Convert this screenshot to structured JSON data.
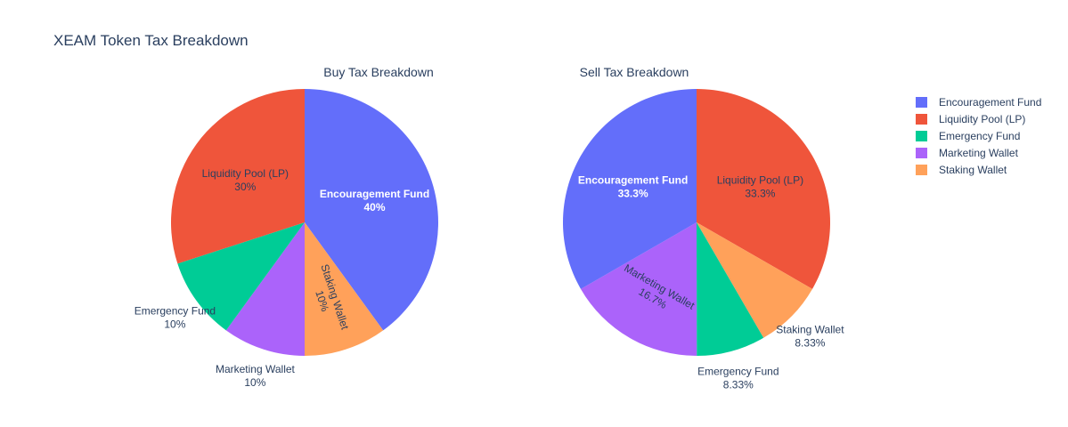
{
  "chart_data": {
    "title": "XEAM Token Tax Breakdown",
    "legend": {
      "placement": "top-right",
      "entries": [
        {
          "name": "Encouragement Fund",
          "color": "#636efa"
        },
        {
          "name": "Liquidity Pool (LP)",
          "color": "#ef553b"
        },
        {
          "name": "Emergency Fund",
          "color": "#00cc96"
        },
        {
          "name": "Marketing Wallet",
          "color": "#ab63fa"
        },
        {
          "name": "Staking Wallet",
          "color": "#ffa15a"
        }
      ]
    },
    "charts": [
      {
        "type": "pie",
        "title": "Buy Tax Breakdown",
        "slices": [
          {
            "label": "Encouragement Fund",
            "value": 40,
            "percent_label": "40%",
            "color": "#636efa"
          },
          {
            "label": "Staking Wallet",
            "value": 10,
            "percent_label": "10%",
            "color": "#ffa15a"
          },
          {
            "label": "Marketing Wallet",
            "value": 10,
            "percent_label": "10%",
            "color": "#ab63fa"
          },
          {
            "label": "Emergency Fund",
            "value": 10,
            "percent_label": "10%",
            "color": "#00cc96"
          },
          {
            "label": "Liquidity Pool (LP)",
            "value": 30,
            "percent_label": "30%",
            "color": "#ef553b"
          }
        ]
      },
      {
        "type": "pie",
        "title": "Sell Tax Breakdown",
        "slices": [
          {
            "label": "Liquidity Pool (LP)",
            "value": 33.3,
            "percent_label": "33.3%",
            "color": "#ef553b"
          },
          {
            "label": "Staking Wallet",
            "value": 8.33,
            "percent_label": "8.33%",
            "color": "#ffa15a"
          },
          {
            "label": "Emergency Fund",
            "value": 8.33,
            "percent_label": "8.33%",
            "color": "#00cc96"
          },
          {
            "label": "Marketing Wallet",
            "value": 16.7,
            "percent_label": "16.7%",
            "color": "#ab63fa"
          },
          {
            "label": "Encouragement Fund",
            "value": 33.3,
            "percent_label": "33.3%",
            "color": "#636efa"
          }
        ]
      }
    ]
  }
}
